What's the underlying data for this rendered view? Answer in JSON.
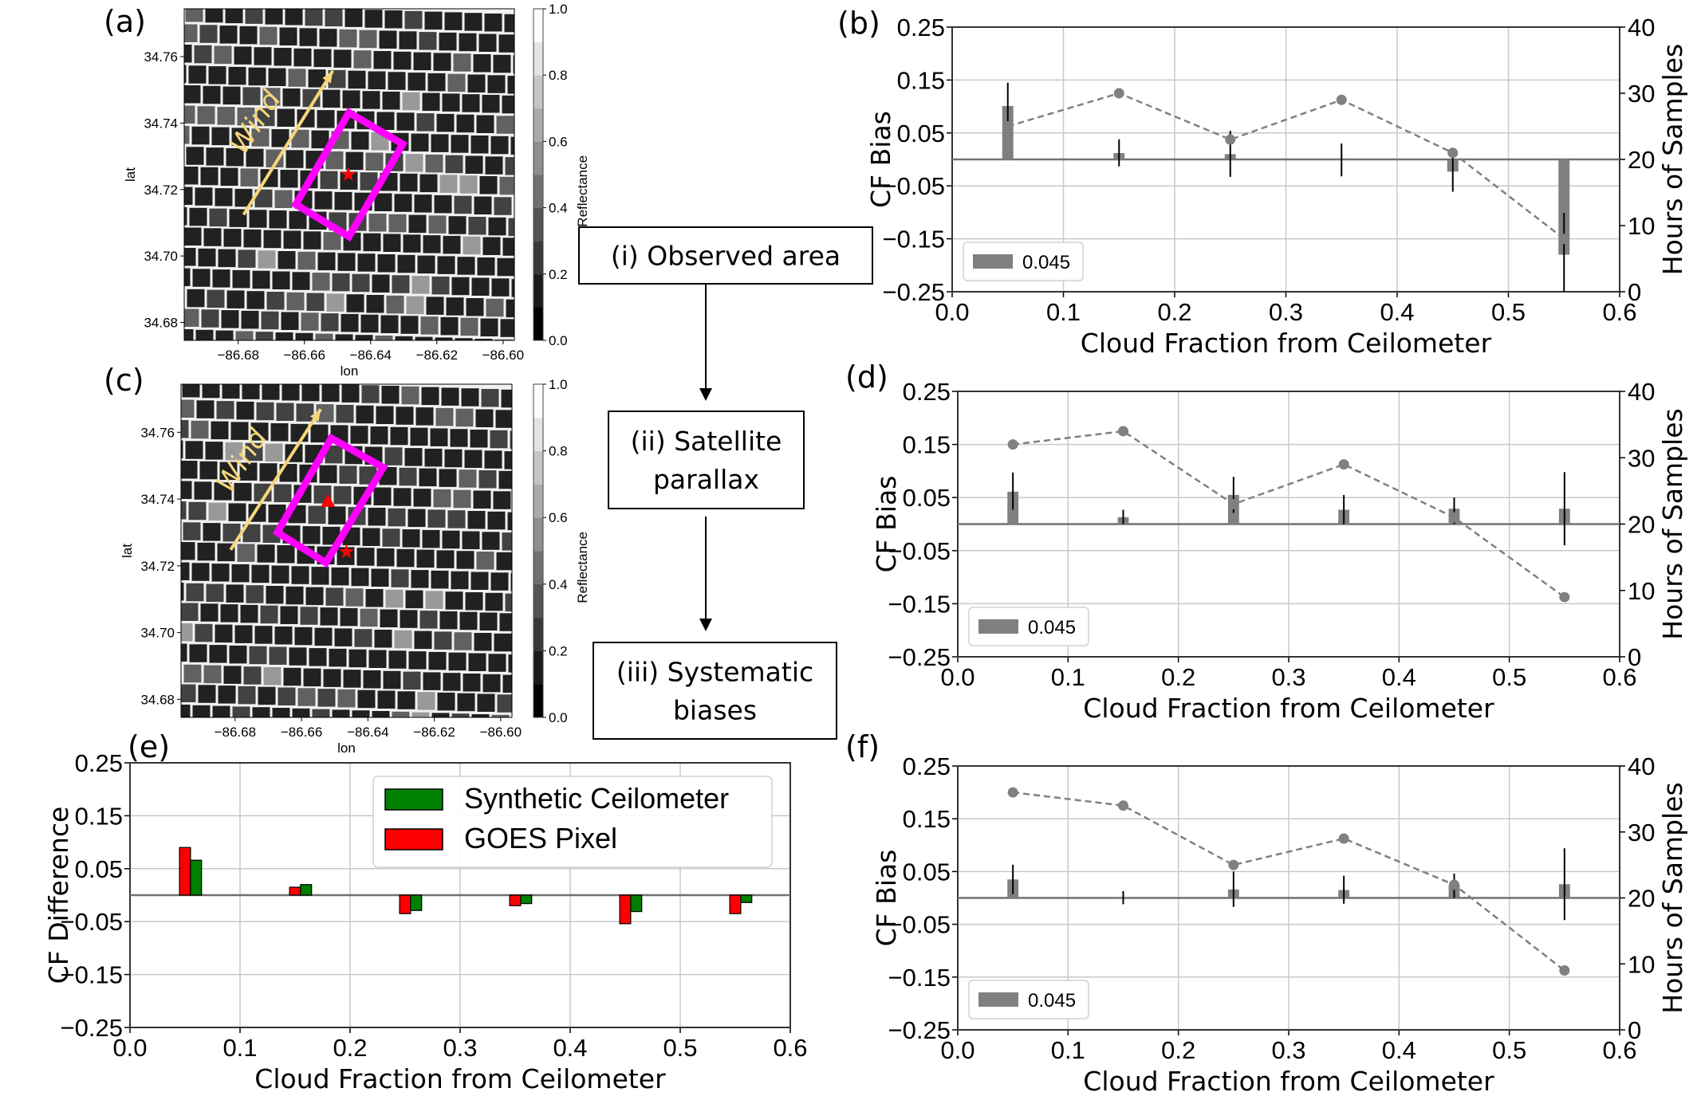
{
  "panel_labels": [
    "(a)",
    "(b)",
    "(c)",
    "(d)",
    "(e)",
    "(f)"
  ],
  "maps": [
    {
      "label": "(a)",
      "xlabel": "lon",
      "ylabel": "lat",
      "lon_ticks": [
        "−86.68",
        "−86.66",
        "−86.64",
        "−86.62",
        "−86.60"
      ],
      "lat_ticks": [
        "34.76",
        "34.74",
        "34.72",
        "34.70",
        "34.68"
      ],
      "lon_extent": [
        -86.6963,
        -86.5966
      ],
      "lat_extent": [
        34.6746,
        34.7744
      ],
      "wind_label": "Wind",
      "markers": [
        "star",
        "box"
      ],
      "colorbar": {
        "label": "Reflectance",
        "ticks": [
          "0.0",
          "0.2",
          "0.4",
          "0.6",
          "0.8",
          "1.0"
        ],
        "range": [
          0,
          1
        ]
      }
    },
    {
      "label": "(c)",
      "xlabel": "lon",
      "ylabel": "lat",
      "lon_ticks": [
        "−86.68",
        "−86.66",
        "−86.64",
        "−86.62",
        "−86.60"
      ],
      "lat_ticks": [
        "34.76",
        "34.74",
        "34.72",
        "34.70",
        "34.68"
      ],
      "lon_extent": [
        -86.6963,
        -86.5966
      ],
      "lat_extent": [
        34.6746,
        34.7744
      ],
      "wind_label": "Wind",
      "markers": [
        "star",
        "triangle",
        "box"
      ],
      "colorbar": {
        "label": "Reflectance",
        "ticks": [
          "0.0",
          "0.2",
          "0.4",
          "0.6",
          "0.8",
          "1.0"
        ],
        "range": [
          0,
          1
        ]
      }
    }
  ],
  "flow": {
    "steps": [
      {
        "lines": [
          "(i) Observed area"
        ]
      },
      {
        "lines": [
          "(ii) Satellite",
          "parallax"
        ]
      },
      {
        "lines": [
          "(iii) Systematic",
          "biases"
        ]
      }
    ]
  },
  "colors": {
    "bar": "#808080",
    "line": "#808080",
    "box": "#ff00ff",
    "marker": "#ff0000",
    "wind": "#f5d67a",
    "goes": "#ff0000",
    "synthetic": "#008000"
  },
  "chart_data": [
    {
      "panel": "(b)",
      "type": "bar+line",
      "xlabel": "Cloud Fraction from Ceilometer",
      "ylabel": "CF Bias",
      "y2label": "Hours of Samples",
      "xlim": [
        0,
        0.6
      ],
      "ylim": [
        -0.25,
        0.25
      ],
      "y2lim": [
        0,
        40
      ],
      "xticks": [
        "0.0",
        "0.1",
        "0.2",
        "0.3",
        "0.4",
        "0.5",
        "0.6"
      ],
      "yticks": [
        "0.25",
        "0.15",
        "0.05",
        "−0.05",
        "−0.15",
        "−0.25"
      ],
      "y2ticks": [
        "0",
        "10",
        "20",
        "30",
        "40"
      ],
      "grid": true,
      "legend": {
        "entries": [
          "0.045"
        ],
        "placement": "lower-left"
      },
      "x": [
        0.05,
        0.15,
        0.25,
        0.35,
        0.45,
        0.55
      ],
      "bias": [
        0.101,
        0.012,
        0.01,
        0.0,
        -0.023,
        -0.18
      ],
      "error_range": [
        [
          0.071,
          0.145
        ],
        [
          -0.013,
          0.038
        ],
        [
          -0.033,
          0.054
        ],
        [
          -0.032,
          0.03
        ],
        [
          -0.061,
          0.016
        ],
        [
          -0.25,
          -0.101
        ]
      ],
      "hours": [
        25,
        30,
        23,
        29,
        21,
        8
      ]
    },
    {
      "panel": "(d)",
      "type": "bar+line",
      "xlabel": "Cloud Fraction from Ceilometer",
      "ylabel": "CF Bias",
      "y2label": "Hours of Samples",
      "xlim": [
        0,
        0.6
      ],
      "ylim": [
        -0.25,
        0.25
      ],
      "y2lim": [
        0,
        40
      ],
      "xticks": [
        "0.0",
        "0.1",
        "0.2",
        "0.3",
        "0.4",
        "0.5",
        "0.6"
      ],
      "yticks": [
        "0.25",
        "0.15",
        "0.05",
        "−0.05",
        "−0.15",
        "−0.25"
      ],
      "y2ticks": [
        "0",
        "10",
        "20",
        "30",
        "40"
      ],
      "grid": true,
      "legend": {
        "entries": [
          "0.045"
        ],
        "placement": "lower-left"
      },
      "x": [
        0.05,
        0.15,
        0.25,
        0.35,
        0.45,
        0.55
      ],
      "bias": [
        0.061,
        0.013,
        0.055,
        0.027,
        0.029,
        0.029
      ],
      "error_range": [
        [
          0.027,
          0.097
        ],
        [
          0.0,
          0.027
        ],
        [
          0.021,
          0.089
        ],
        [
          0.0,
          0.055
        ],
        [
          0.0,
          0.05
        ],
        [
          -0.04,
          0.098
        ]
      ],
      "hours": [
        32,
        34,
        23,
        29,
        21,
        9
      ]
    },
    {
      "panel": "(f)",
      "type": "bar+line",
      "xlabel": "Cloud Fraction from Ceilometer",
      "ylabel": "CF Bias",
      "y2label": "Hours of Samples",
      "xlim": [
        0,
        0.6
      ],
      "ylim": [
        -0.25,
        0.25
      ],
      "y2lim": [
        0,
        40
      ],
      "xticks": [
        "0.0",
        "0.1",
        "0.2",
        "0.3",
        "0.4",
        "0.5",
        "0.6"
      ],
      "yticks": [
        "0.25",
        "0.15",
        "0.05",
        "−0.05",
        "−0.15",
        "−0.25"
      ],
      "y2ticks": [
        "0",
        "10",
        "20",
        "30",
        "40"
      ],
      "grid": true,
      "legend": {
        "entries": [
          "0.045"
        ],
        "placement": "lower-left"
      },
      "x": [
        0.05,
        0.15,
        0.25,
        0.35,
        0.45,
        0.55
      ],
      "bias": [
        0.035,
        0.0,
        0.016,
        0.015,
        0.025,
        0.026
      ],
      "error_range": [
        [
          0.007,
          0.063
        ],
        [
          -0.012,
          0.013
        ],
        [
          -0.017,
          0.05
        ],
        [
          -0.011,
          0.042
        ],
        [
          0.0,
          0.046
        ],
        [
          -0.042,
          0.094
        ]
      ],
      "hours": [
        36,
        34,
        25,
        29,
        22,
        9
      ]
    },
    {
      "panel": "(e)",
      "type": "bar",
      "xlabel": "Cloud Fraction from Ceilometer",
      "ylabel": "CF Difference",
      "xlim": [
        0,
        0.6
      ],
      "ylim": [
        -0.25,
        0.25
      ],
      "xticks": [
        "0.0",
        "0.1",
        "0.2",
        "0.3",
        "0.4",
        "0.5",
        "0.6"
      ],
      "yticks": [
        "0.25",
        "0.15",
        "0.05",
        "−0.05",
        "−0.15",
        "−0.25"
      ],
      "grid": true,
      "legend": {
        "placement": "upper-right"
      },
      "x": [
        0.05,
        0.15,
        0.25,
        0.35,
        0.45,
        0.55
      ],
      "series": [
        {
          "name": "Synthetic Ceilometer",
          "color": "#008000",
          "values": [
            0.066,
            0.02,
            -0.029,
            -0.016,
            -0.031,
            -0.014
          ]
        },
        {
          "name": "GOES Pixel",
          "color": "#ff0000",
          "values": [
            0.09,
            0.015,
            -0.035,
            -0.02,
            -0.054,
            -0.035
          ]
        }
      ]
    }
  ]
}
